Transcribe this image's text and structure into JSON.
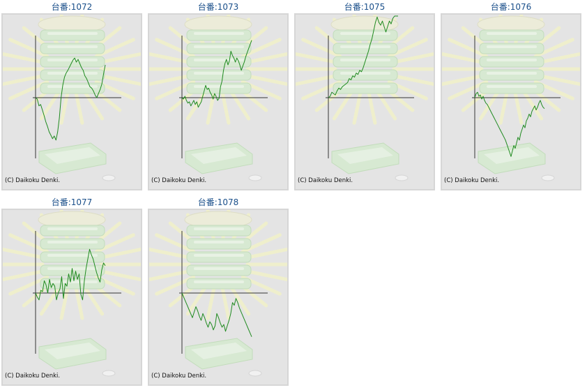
{
  "copyright": "(C) Daikoku Denki.",
  "colors": {
    "link": "#1a4f8a",
    "line": "#1f8a1f",
    "axis": "#333333",
    "background": "#e4e4e4",
    "frame": "#d6d6d6"
  },
  "machines": [
    {
      "label": "台番:1072",
      "chart_data": {
        "type": "line",
        "series": [
          {
            "values": [
              0,
              -2,
              -12,
              -10,
              -18,
              -26,
              -35,
              -42,
              -50,
              -55,
              -60,
              -56,
              -62,
              -50,
              -30,
              0,
              18,
              30,
              36,
              40,
              45,
              50,
              55,
              58,
              52,
              56,
              50,
              44,
              40,
              32,
              28,
              22,
              16,
              14,
              10,
              4,
              0,
              6,
              12,
              20,
              35,
              48
            ]
          }
        ]
      }
    },
    {
      "label": "台番:1073",
      "chart_data": {
        "type": "line",
        "series": [
          {
            "values": [
              0,
              -2,
              2,
              -4,
              -8,
              -6,
              -12,
              -8,
              -4,
              -10,
              -6,
              -14,
              -10,
              -6,
              2,
              10,
              18,
              12,
              14,
              8,
              4,
              -2,
              6,
              2,
              -4,
              -1,
              16,
              24,
              40,
              50,
              56,
              48,
              54,
              68,
              62,
              58,
              52,
              58,
              54,
              48,
              40,
              46,
              52,
              60,
              66,
              72,
              78,
              84
            ]
          }
        ]
      }
    },
    {
      "label": "台番:1075",
      "chart_data": {
        "type": "line",
        "series": [
          {
            "values": [
              0,
              2,
              8,
              6,
              4,
              10,
              14,
              12,
              16,
              18,
              20,
              22,
              28,
              26,
              32,
              30,
              36,
              34,
              40,
              38,
              44,
              52,
              60,
              68,
              78,
              86,
              98,
              110,
              118,
              110,
              106,
              112,
              104,
              96,
              104,
              112,
              108,
              116,
              122,
              128,
              124
            ]
          }
        ]
      }
    },
    {
      "label": "台番:1076",
      "chart_data": {
        "type": "line",
        "series": [
          {
            "values": [
              0,
              6,
              8,
              2,
              4,
              -2,
              2,
              -4,
              -8,
              -10,
              -14,
              -18,
              -22,
              -26,
              -30,
              -34,
              -38,
              -42,
              -46,
              -50,
              -54,
              -58,
              -62,
              -68,
              -74,
              -80,
              -86,
              -78,
              -70,
              -74,
              -66,
              -58,
              -62,
              -52,
              -46,
              -40,
              -44,
              -34,
              -30,
              -24,
              -28,
              -20,
              -16,
              -12,
              -18,
              -14,
              -8,
              -4,
              -10,
              -14,
              -16
            ]
          }
        ]
      }
    },
    {
      "label": "台番:1077",
      "chart_data": {
        "type": "line",
        "series": [
          {
            "values": [
              0,
              -6,
              -10,
              4,
              2,
              18,
              12,
              0,
              20,
              8,
              14,
              10,
              -10,
              0,
              6,
              24,
              -8,
              14,
              10,
              28,
              16,
              36,
              18,
              32,
              20,
              28,
              -2,
              -10,
              18,
              36,
              50,
              64,
              56,
              50,
              40,
              30,
              22,
              16,
              34,
              44,
              40
            ]
          }
        ]
      }
    },
    {
      "label": "台番:1078",
      "chart_data": {
        "type": "line",
        "series": [
          {
            "values": [
              0,
              -6,
              -12,
              -18,
              -24,
              -30,
              -36,
              -28,
              -20,
              -26,
              -34,
              -40,
              -30,
              -36,
              -44,
              -50,
              -42,
              -46,
              -54,
              -48,
              -30,
              -36,
              -44,
              -50,
              -46,
              -56,
              -48,
              -40,
              -30,
              -14,
              -18,
              -8,
              -14,
              -22,
              -28,
              -34,
              -40,
              -46,
              -52,
              -58,
              -64
            ]
          }
        ]
      }
    }
  ]
}
